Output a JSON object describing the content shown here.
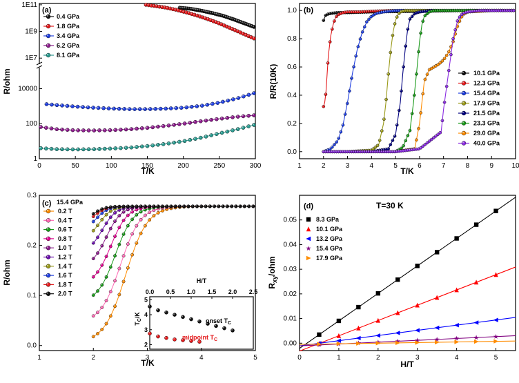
{
  "chart_data": [
    {
      "panel": "(a)",
      "type": "line",
      "xlabel": "T/K",
      "ylabel": "R/ohm",
      "xlim": [
        0,
        300
      ],
      "yscale": "log-broken",
      "xticks": [
        "0",
        "50",
        "100",
        "150",
        "200",
        "250",
        "300"
      ],
      "yticks_lower": [
        "1",
        "100",
        "10000"
      ],
      "yticks_upper": [
        "1E7",
        "1E9",
        "1E11"
      ],
      "series": [
        {
          "name": "0.4 GPa",
          "color": "#111111",
          "x": [
            195,
            210,
            225,
            240,
            255,
            270,
            285,
            298
          ],
          "y": [
            60000000000.0,
            50000000000.0,
            36000000000.0,
            24000000000.0,
            15000000000.0,
            8000000000.0,
            4000000000.0,
            2200000000.0
          ]
        },
        {
          "name": "1.8 GPa",
          "color": "#e41a1c",
          "x": [
            148,
            160,
            175,
            190,
            205,
            220,
            235,
            250,
            265,
            280,
            298
          ],
          "y": [
            100000000000.0,
            82000000000.0,
            62000000000.0,
            42000000000.0,
            26000000000.0,
            15000000000.0,
            8000000000.0,
            4000000000.0,
            1800000000.0,
            800000000.0,
            300000000.0
          ]
        },
        {
          "name": "3.4 GPa",
          "color": "#1f3fe0",
          "x": [
            10,
            25,
            50,
            75,
            100,
            125,
            150,
            175,
            200,
            225,
            250,
            275,
            298
          ],
          "y": [
            1300,
            1150,
            950,
            820,
            730,
            680,
            680,
            720,
            820,
            1050,
            1600,
            2800,
            5500
          ]
        },
        {
          "name": "6.2 GPa",
          "color": "#8b1a8b",
          "x": [
            2,
            10,
            25,
            50,
            75,
            100,
            125,
            150,
            175,
            200,
            225,
            250,
            275,
            298
          ],
          "y": [
            65,
            58,
            48,
            42,
            41,
            43,
            48,
            58,
            75,
            100,
            140,
            190,
            250,
            300
          ]
        },
        {
          "name": "8.1 GPa",
          "color": "#2a9a8f",
          "x": [
            2,
            10,
            25,
            50,
            75,
            100,
            125,
            150,
            175,
            200,
            225,
            250,
            275,
            298
          ],
          "y": [
            4.0,
            3.8,
            3.5,
            3.4,
            3.5,
            3.8,
            4.3,
            5.3,
            7.0,
            10,
            16,
            28,
            48,
            85
          ]
        }
      ]
    },
    {
      "panel": "(b)",
      "type": "line",
      "xlabel": "T/K",
      "ylabel": "R/R(10K)",
      "xlim": [
        1,
        10
      ],
      "ylim": [
        -0.05,
        1.05
      ],
      "xticks": [
        "1",
        "2",
        "3",
        "4",
        "5",
        "6",
        "7",
        "8",
        "9",
        "10"
      ],
      "yticks": [
        "0.0",
        "0.2",
        "0.4",
        "0.6",
        "0.8",
        "1.0"
      ],
      "series": [
        {
          "name": "10.1 GPa",
          "color": "#111111",
          "x": [
            2,
            2.05,
            2.1,
            2.3,
            2.6,
            3,
            4,
            6,
            8,
            10
          ],
          "y": [
            0.93,
            0.95,
            0.97,
            0.98,
            0.985,
            0.985,
            0.99,
            0.995,
            1.0,
            1.0
          ]
        },
        {
          "name": "12.3 GPa",
          "color": "#e41a1c",
          "x": [
            2,
            2.05,
            2.1,
            2.15,
            2.2,
            2.3,
            2.4,
            2.5,
            2.6,
            2.8,
            3,
            3.5,
            4,
            5,
            6,
            8,
            10
          ],
          "y": [
            0.32,
            0.35,
            0.42,
            0.55,
            0.68,
            0.82,
            0.9,
            0.95,
            0.97,
            0.985,
            0.99,
            0.99,
            0.995,
            1.0,
            1.0,
            1.0,
            1.0
          ]
        },
        {
          "name": "15.4 GPa",
          "color": "#1f3fe0",
          "x": [
            2,
            2.3,
            2.6,
            2.8,
            3.0,
            3.2,
            3.4,
            3.6,
            3.8,
            4.0,
            4.2,
            4.5,
            5,
            6,
            8,
            10
          ],
          "y": [
            0.0,
            0.02,
            0.08,
            0.18,
            0.35,
            0.55,
            0.72,
            0.84,
            0.92,
            0.96,
            0.98,
            0.99,
            1.0,
            1.0,
            1.0,
            1.0
          ]
        },
        {
          "name": "17.9 GPa",
          "color": "#9a9a1a",
          "x": [
            2,
            3,
            4.0,
            4.3,
            4.5,
            4.6,
            4.7,
            4.8,
            4.9,
            5.0,
            5.1,
            5.2,
            5.4,
            5.6,
            6,
            8,
            10
          ],
          "y": [
            0.0,
            0.0,
            0.01,
            0.05,
            0.2,
            0.35,
            0.55,
            0.72,
            0.85,
            0.93,
            0.97,
            0.99,
            1.0,
            1.0,
            1.0,
            1.0,
            1.0
          ]
        },
        {
          "name": "21.5 GPa",
          "color": "#000080",
          "x": [
            2,
            3,
            4,
            4.7,
            5.0,
            5.2,
            5.3,
            5.4,
            5.5,
            5.6,
            5.8,
            6,
            6.5,
            8,
            10
          ],
          "y": [
            0.0,
            0.0,
            0.0,
            0.02,
            0.12,
            0.35,
            0.55,
            0.72,
            0.86,
            0.94,
            0.98,
            0.99,
            1.0,
            1.0,
            1.0
          ]
        },
        {
          "name": "23.3 GPa",
          "color": "#1a9a1a",
          "x": [
            2,
            3,
            4,
            5,
            5.3,
            5.6,
            5.75,
            5.9,
            6.0,
            6.1,
            6.2,
            6.4,
            6.6,
            7,
            8,
            10
          ],
          "y": [
            0.0,
            0.0,
            0.0,
            0.0,
            0.03,
            0.15,
            0.35,
            0.6,
            0.78,
            0.9,
            0.96,
            0.99,
            1.0,
            1.0,
            1.0,
            1.0
          ]
        },
        {
          "name": "29.0 GPa",
          "color": "#ff8c00",
          "x": [
            2,
            3,
            4,
            5,
            5.8,
            6.0,
            6.2,
            6.4,
            6.6,
            6.8,
            7.0,
            7.2,
            7.4,
            7.6,
            7.8,
            8,
            9,
            10
          ],
          "y": [
            0.0,
            0.0,
            0.0,
            0.0,
            0.02,
            0.2,
            0.5,
            0.58,
            0.6,
            0.62,
            0.65,
            0.7,
            0.78,
            0.9,
            0.97,
            0.99,
            1.0,
            1.0
          ]
        },
        {
          "name": "40.0 GPa",
          "color": "#8a2be2",
          "x": [
            2,
            3,
            4,
            5,
            6,
            6.3,
            6.6,
            6.9,
            7.0,
            7.2,
            7.4,
            7.6,
            7.8,
            8.0,
            8.5,
            9,
            10
          ],
          "y": [
            0.0,
            0.0,
            0.0,
            0.0,
            0.02,
            0.06,
            0.1,
            0.14,
            0.3,
            0.55,
            0.8,
            0.94,
            0.98,
            0.99,
            1.0,
            1.0,
            1.0
          ]
        }
      ]
    },
    {
      "panel": "(c)",
      "type": "line",
      "xlabel": "T/K",
      "ylabel": "R/ohm",
      "xlim": [
        1,
        5
      ],
      "ylim": [
        -0.01,
        0.3
      ],
      "xticks": [
        "1",
        "2",
        "3",
        "4",
        "5"
      ],
      "yticks": [
        "0.0",
        "0.1",
        "0.2",
        "0.3"
      ],
      "legend_title": "15.4 GPa",
      "series": [
        {
          "name": "0.2 T",
          "color": "#ff8c00",
          "offset": 0.5
        },
        {
          "name": "0.4 T",
          "color": "#ff69b4",
          "offset": 0.42
        },
        {
          "name": "0.6 T",
          "color": "#1a9a1a",
          "offset": 0.34
        },
        {
          "name": "0.8 T",
          "color": "#e0008f",
          "offset": 0.27
        },
        {
          "name": "1.0 T",
          "color": "#8b1a8b",
          "offset": 0.2
        },
        {
          "name": "1.2 T",
          "color": "#6a0dad",
          "offset": 0.14
        },
        {
          "name": "1.4 T",
          "color": "#9a9a1a",
          "offset": 0.09
        },
        {
          "name": "1.6 T",
          "color": "#1f3fe0",
          "offset": 0.05
        },
        {
          "name": "1.8 T",
          "color": "#e41a1c",
          "offset": 0.025
        },
        {
          "name": "2.0 T",
          "color": "#111111",
          "offset": 0.01
        }
      ],
      "inset": {
        "xlabel": "H/T",
        "ylabel": "Tc/K",
        "xlim": [
          0,
          2.5
        ],
        "ylim": [
          1.7,
          5.2
        ],
        "xticks": [
          "0.0",
          "0.5",
          "1.0",
          "1.5",
          "2.0",
          "2.5"
        ],
        "yticks": [
          "2",
          "3",
          "4",
          "5"
        ],
        "onset_label": "onset T",
        "midpoint_label": "midpoint T",
        "label_sub": "C",
        "onset": {
          "color": "#111111",
          "x": [
            0,
            0.2,
            0.4,
            0.6,
            0.8,
            1.0,
            1.2,
            1.4,
            1.6,
            1.8,
            2.0
          ],
          "y": [
            4.55,
            4.3,
            4.15,
            4.0,
            3.85,
            3.7,
            3.55,
            3.4,
            3.25,
            3.1,
            2.95
          ]
        },
        "midpoint": {
          "color": "#e41a1c",
          "x": [
            0,
            0.2,
            0.4,
            0.6,
            0.8,
            1.0,
            1.2
          ],
          "y": [
            2.75,
            2.55,
            2.45,
            2.35,
            2.3,
            2.25,
            2.2
          ]
        }
      }
    },
    {
      "panel": "(d)",
      "type": "scatter",
      "annotation": "T=30 K",
      "xlabel": "H/T",
      "ylabel": "R",
      "ylabel_sub": "xy",
      "ylabel_suffix": "/ohm",
      "xlim": [
        0,
        5.5
      ],
      "ylim": [
        -0.003,
        0.06
      ],
      "xticks": [
        "0",
        "1",
        "2",
        "3",
        "4",
        "5"
      ],
      "yticks": [
        "0.00",
        "0.01",
        "0.02",
        "0.03",
        "0.04",
        "0.05"
      ],
      "series": [
        {
          "name": "8.3  GPa",
          "color": "#000000",
          "marker": "square",
          "slope": 0.01115,
          "intercept": -0.0021
        },
        {
          "name": "10.1 GPa",
          "color": "#ff0000",
          "marker": "triangle-up",
          "slope": 0.0062,
          "intercept": -0.0032
        },
        {
          "name": "13.2 GPa",
          "color": "#0000ff",
          "marker": "triangle-left",
          "slope": 0.0021,
          "intercept": -0.0011
        },
        {
          "name": "15.4 GPa",
          "color": "#800080",
          "marker": "star",
          "slope": 0.00075,
          "intercept": -0.0011
        },
        {
          "name": "17.9 GPa",
          "color": "#ff8c00",
          "marker": "triangle-right",
          "slope": 0.00025,
          "intercept": -0.0005
        }
      ]
    }
  ]
}
